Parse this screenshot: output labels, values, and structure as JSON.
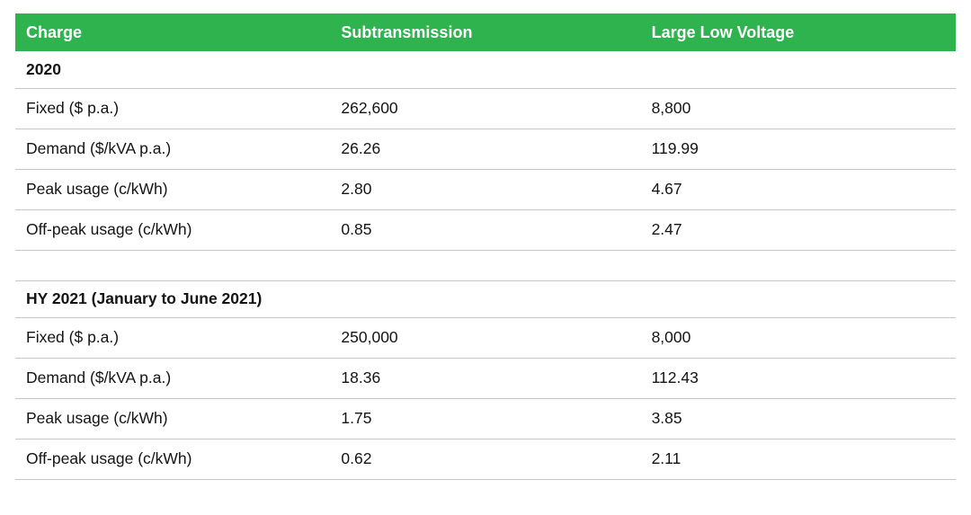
{
  "colors": {
    "header_bg": "#2eb34e",
    "header_text": "#ffffff",
    "row_border": "#c6c6c6",
    "text": "#141414"
  },
  "table": {
    "columns": [
      "Charge",
      "Subtransmission",
      "Large Low Voltage"
    ],
    "sections": [
      {
        "title": "2020",
        "rows": [
          [
            "Fixed ($ p.a.)",
            "262,600",
            "8,800"
          ],
          [
            "Demand ($/kVA p.a.)",
            "26.26",
            "119.99"
          ],
          [
            "Peak usage (c/kWh)",
            "2.80",
            "4.67"
          ],
          [
            "Off-peak usage (c/kWh)",
            "0.85",
            "2.47"
          ]
        ]
      },
      {
        "title": "HY 2021 (January to June 2021)",
        "rows": [
          [
            "Fixed ($ p.a.)",
            "250,000",
            "8,000"
          ],
          [
            "Demand ($/kVA p.a.)",
            "18.36",
            "112.43"
          ],
          [
            "Peak usage (c/kWh)",
            "1.75",
            "3.85"
          ],
          [
            "Off-peak usage (c/kWh)",
            "0.62",
            "2.11"
          ]
        ]
      }
    ]
  }
}
